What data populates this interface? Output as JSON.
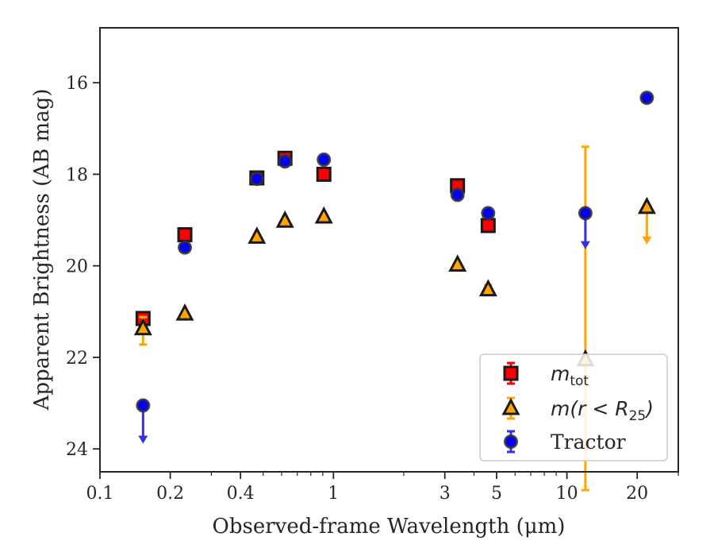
{
  "chart_data": {
    "type": "scatter",
    "xlabel": "Observed-frame Wavelength (μm)",
    "ylabel": "Apparent Brightness (AB mag)",
    "xscale": "log",
    "xlim": [
      0.1,
      30
    ],
    "ylim": [
      24.5,
      14.8
    ],
    "y_inverted": true,
    "x_ticks": [
      {
        "value": 0.1,
        "label": "0.1"
      },
      {
        "value": 0.2,
        "label": "0.2"
      },
      {
        "value": 0.4,
        "label": "0.4"
      },
      {
        "value": 1,
        "label": "1"
      },
      {
        "value": 3,
        "label": "3"
      },
      {
        "value": 5,
        "label": "5"
      },
      {
        "value": 10,
        "label": "10"
      },
      {
        "value": 20,
        "label": "20"
      }
    ],
    "y_ticks": [
      {
        "value": 16,
        "label": "16"
      },
      {
        "value": 18,
        "label": "18"
      },
      {
        "value": 20,
        "label": "20"
      },
      {
        "value": 22,
        "label": "22"
      },
      {
        "value": 24,
        "label": "24"
      }
    ],
    "grid": false,
    "legend_position": "bottom-right",
    "series": [
      {
        "name": "m_tot",
        "legend_label": {
          "main": "m",
          "sub": "tot"
        },
        "marker": "square",
        "color": "#ff0000",
        "edge_color": "#1a1a1a",
        "errorbar_color": "#ff0000",
        "points": [
          {
            "x": 0.153,
            "y": 21.15,
            "err": 0.08
          },
          {
            "x": 0.231,
            "y": 19.32,
            "err": 0.05
          },
          {
            "x": 0.47,
            "y": 18.08,
            "err": 0.03
          },
          {
            "x": 0.62,
            "y": 17.65,
            "err": 0.05
          },
          {
            "x": 0.91,
            "y": 18.0,
            "err": 0.03
          },
          {
            "x": 3.4,
            "y": 18.25,
            "err": 0.05
          },
          {
            "x": 4.6,
            "y": 19.12,
            "err": 0.05
          }
        ]
      },
      {
        "name": "m(r < R25)",
        "legend_label": {
          "main": "m(r < R",
          "sub": "25",
          "tail": ")"
        },
        "marker": "triangle",
        "color": "#ffa500",
        "edge_color": "#1a1a1a",
        "errorbar_color": "#ffa500",
        "points": [
          {
            "x": 0.153,
            "y": 21.37,
            "err_low": 0.25,
            "err_high": 0.35
          },
          {
            "x": 0.231,
            "y": 21.05
          },
          {
            "x": 0.47,
            "y": 19.37
          },
          {
            "x": 0.62,
            "y": 19.02
          },
          {
            "x": 0.91,
            "y": 18.93
          },
          {
            "x": 3.4,
            "y": 19.98
          },
          {
            "x": 4.6,
            "y": 20.52,
            "err": 0.1
          },
          {
            "x": 12.0,
            "y": 22.05,
            "err_low": 4.65,
            "err_high": 2.85
          },
          {
            "x": 22.0,
            "y": 18.72,
            "upper_limit": true,
            "arrow_to": 19.5
          }
        ]
      },
      {
        "name": "Tractor",
        "legend_label": {
          "main": "Tractor"
        },
        "marker": "circle",
        "color": "#0000ff",
        "edge_color": "#333333",
        "errorbar_color": "#3333dd",
        "points": [
          {
            "x": 0.153,
            "y": 23.05,
            "upper_limit": true,
            "arrow_to": 23.85
          },
          {
            "x": 0.231,
            "y": 19.6
          },
          {
            "x": 0.47,
            "y": 18.1
          },
          {
            "x": 0.62,
            "y": 17.72
          },
          {
            "x": 0.91,
            "y": 17.68
          },
          {
            "x": 3.4,
            "y": 18.45
          },
          {
            "x": 4.6,
            "y": 18.85
          },
          {
            "x": 12.0,
            "y": 18.85,
            "upper_limit": true,
            "arrow_to": 19.6
          },
          {
            "x": 22.0,
            "y": 16.33
          }
        ]
      }
    ]
  }
}
